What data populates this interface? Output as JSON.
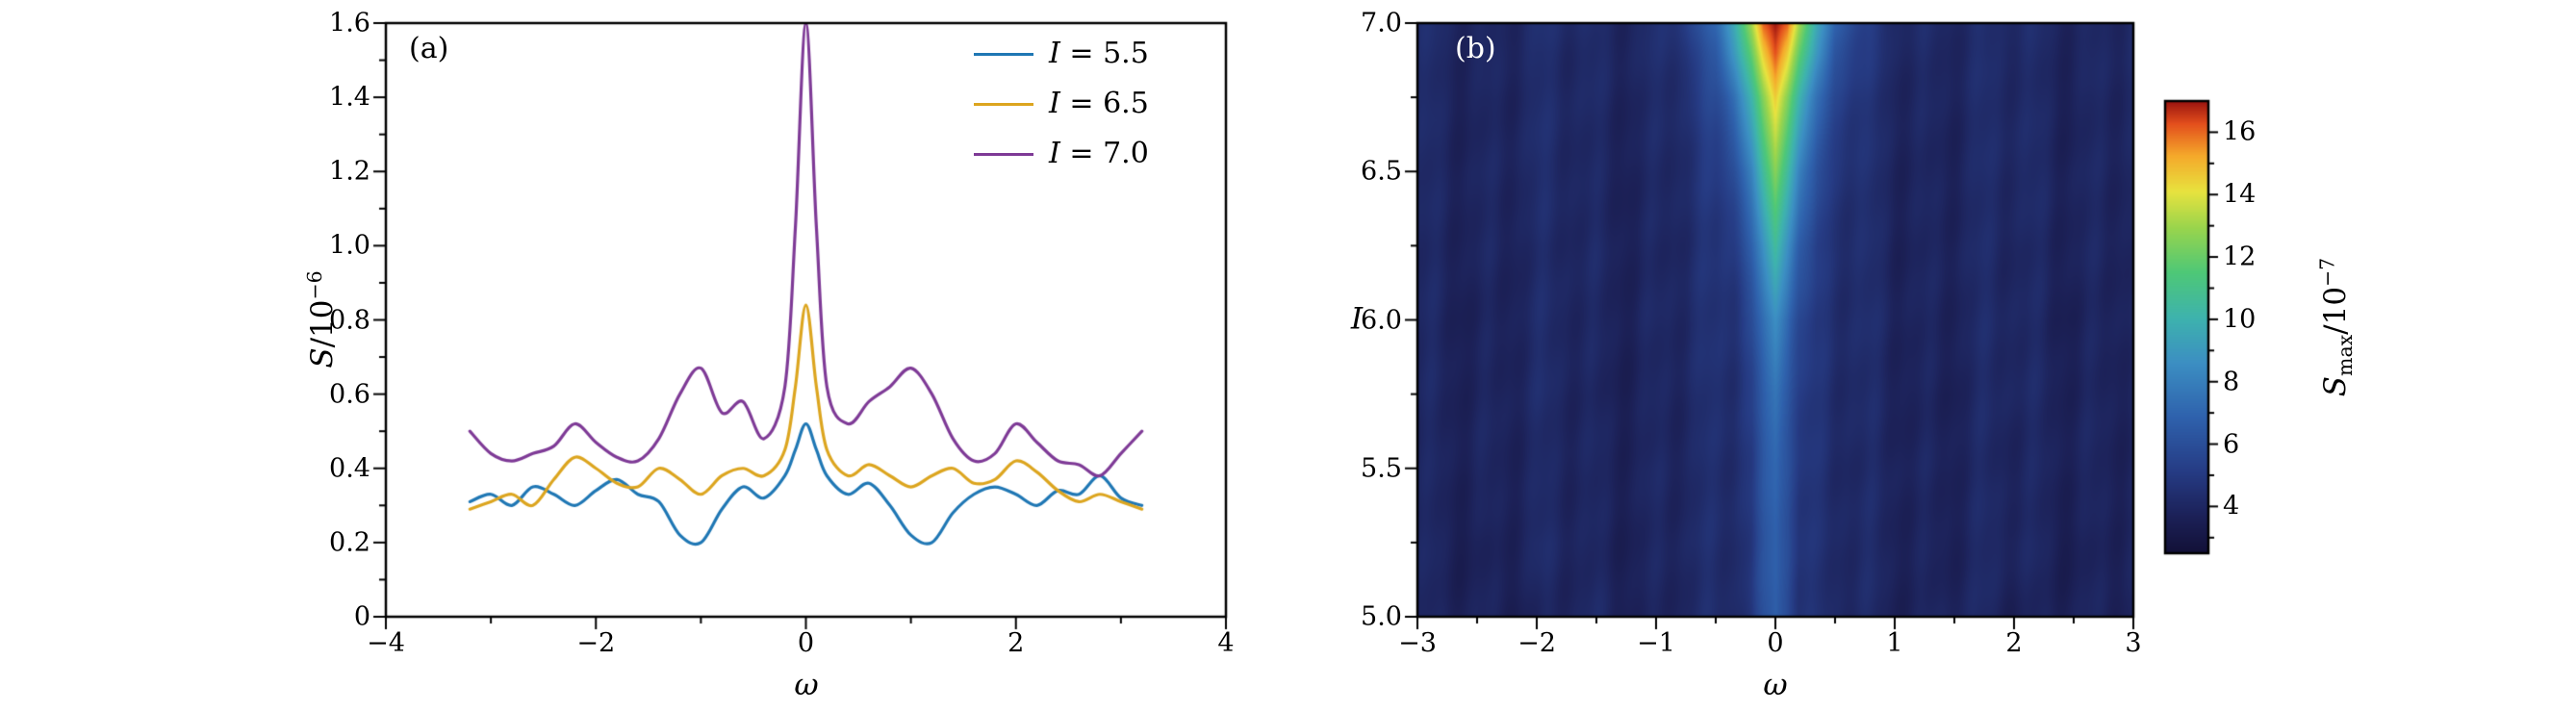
{
  "chart_data": [
    {
      "type": "line",
      "panel_label": "(a)",
      "xlabel": "ω",
      "ylabel": {
        "sym": "S",
        "base": "/10",
        "exp": "−6"
      },
      "xlim": [
        -4,
        4
      ],
      "ylim": [
        0,
        1.6
      ],
      "xtick_values": [
        -4,
        -2,
        0,
        2,
        4
      ],
      "xtick_labels": [
        "−4",
        "−2",
        "0",
        "2",
        "4"
      ],
      "ytick_values": [
        0,
        0.2,
        0.4,
        0.6,
        0.8,
        1.0,
        1.2,
        1.4,
        1.6
      ],
      "ytick_labels": [
        "0",
        "0.2",
        "0.4",
        "0.6",
        "0.8",
        "1.0",
        "1.2",
        "1.4",
        "1.6"
      ],
      "x_minor_step": 1,
      "y_minor_step": 0.1,
      "legend_position": "top-right",
      "x": [
        -3.2,
        -3.0,
        -2.8,
        -2.6,
        -2.4,
        -2.2,
        -2.0,
        -1.8,
        -1.6,
        -1.4,
        -1.2,
        -1.0,
        -0.8,
        -0.6,
        -0.4,
        -0.2,
        -0.1,
        0,
        0.1,
        0.2,
        0.4,
        0.6,
        0.8,
        1.0,
        1.2,
        1.4,
        1.6,
        1.8,
        2.0,
        2.2,
        2.4,
        2.6,
        2.8,
        3.0,
        3.2
      ],
      "series": [
        {
          "name": "I = 5.5",
          "color": "#1f77b4",
          "values": [
            0.31,
            0.33,
            0.3,
            0.35,
            0.33,
            0.3,
            0.34,
            0.37,
            0.33,
            0.31,
            0.22,
            0.2,
            0.29,
            0.35,
            0.32,
            0.38,
            0.45,
            0.52,
            0.45,
            0.38,
            0.33,
            0.36,
            0.3,
            0.22,
            0.2,
            0.28,
            0.33,
            0.35,
            0.33,
            0.3,
            0.34,
            0.33,
            0.38,
            0.32,
            0.3
          ]
        },
        {
          "name": "I = 6.5",
          "color": "#dca51f",
          "values": [
            0.29,
            0.31,
            0.33,
            0.3,
            0.37,
            0.43,
            0.4,
            0.36,
            0.35,
            0.4,
            0.37,
            0.33,
            0.38,
            0.4,
            0.38,
            0.45,
            0.62,
            0.84,
            0.62,
            0.45,
            0.38,
            0.41,
            0.38,
            0.35,
            0.38,
            0.4,
            0.36,
            0.37,
            0.42,
            0.39,
            0.34,
            0.31,
            0.33,
            0.31,
            0.29
          ]
        },
        {
          "name": "I = 7.0",
          "color": "#7e3a96",
          "values": [
            0.5,
            0.44,
            0.42,
            0.44,
            0.46,
            0.52,
            0.47,
            0.43,
            0.42,
            0.48,
            0.6,
            0.67,
            0.55,
            0.58,
            0.48,
            0.62,
            1.05,
            1.6,
            1.05,
            0.62,
            0.52,
            0.58,
            0.62,
            0.67,
            0.6,
            0.48,
            0.42,
            0.44,
            0.52,
            0.47,
            0.42,
            0.41,
            0.38,
            0.44,
            0.5
          ]
        }
      ]
    },
    {
      "type": "heatmap",
      "panel_label": "(b)",
      "xlabel": "ω",
      "ylabel": "I",
      "xlim": [
        -3,
        3
      ],
      "ylim": [
        5.0,
        7.0
      ],
      "xtick_values": [
        -3,
        -2,
        -1,
        0,
        1,
        2,
        3
      ],
      "xtick_labels": [
        "−3",
        "−2",
        "−1",
        "0",
        "1",
        "2",
        "3"
      ],
      "ytick_values": [
        5.0,
        5.5,
        6.0,
        6.5,
        7.0
      ],
      "ytick_labels": [
        "5.0",
        "5.5",
        "6.0",
        "6.5",
        "7.0"
      ],
      "x_minor_step": 0.5,
      "y_minor_step": 0.25,
      "grid_x": [
        -3,
        -2.5,
        -2,
        -1.5,
        -1,
        -0.75,
        -0.5,
        -0.35,
        -0.2,
        -0.1,
        0,
        0.1,
        0.2,
        0.35,
        0.5,
        0.75,
        1,
        1.5,
        2,
        2.5,
        3
      ],
      "grid_y": [
        5.0,
        5.25,
        5.5,
        5.75,
        6.0,
        6.25,
        6.5,
        6.75,
        6.9,
        7.0
      ],
      "values": [
        [
          3.7,
          3.9,
          3.6,
          4.0,
          3.8,
          3.9,
          4.0,
          4.2,
          4.8,
          6.0,
          6.8,
          6.0,
          4.8,
          4.2,
          4.0,
          3.9,
          3.8,
          4.0,
          3.6,
          3.9,
          3.7
        ],
        [
          3.8,
          3.7,
          4.0,
          3.8,
          3.9,
          4.0,
          4.1,
          4.3,
          4.9,
          6.1,
          6.9,
          6.1,
          4.9,
          4.3,
          4.1,
          4.0,
          3.9,
          3.8,
          4.0,
          3.7,
          3.8
        ],
        [
          3.7,
          4.0,
          3.8,
          3.9,
          4.0,
          3.9,
          4.1,
          4.4,
          5.0,
          6.3,
          7.1,
          6.3,
          5.0,
          4.4,
          4.1,
          3.9,
          4.0,
          3.9,
          3.8,
          4.0,
          3.7
        ],
        [
          3.8,
          3.9,
          4.0,
          3.8,
          3.9,
          4.0,
          4.2,
          4.5,
          5.2,
          6.6,
          7.6,
          6.6,
          5.2,
          4.5,
          4.2,
          4.0,
          3.9,
          3.8,
          4.0,
          3.9,
          3.8
        ],
        [
          3.9,
          3.8,
          4.0,
          3.9,
          4.0,
          4.1,
          4.3,
          4.7,
          5.7,
          7.3,
          8.6,
          7.3,
          5.7,
          4.7,
          4.3,
          4.1,
          4.0,
          3.9,
          4.0,
          3.8,
          3.9
        ],
        [
          3.8,
          4.0,
          3.9,
          4.0,
          3.9,
          4.1,
          4.4,
          5.1,
          6.7,
          8.7,
          10.6,
          8.7,
          6.7,
          5.1,
          4.4,
          4.1,
          3.9,
          4.0,
          3.9,
          4.0,
          3.8
        ],
        [
          3.9,
          4.0,
          4.1,
          3.9,
          4.0,
          4.2,
          4.8,
          5.9,
          8.1,
          10.6,
          12.6,
          10.6,
          8.1,
          5.9,
          4.8,
          4.2,
          4.0,
          3.9,
          4.1,
          4.0,
          3.9
        ],
        [
          4.0,
          3.9,
          4.1,
          4.0,
          4.1,
          4.4,
          5.5,
          7.3,
          10.1,
          12.6,
          14.6,
          12.6,
          10.1,
          7.3,
          5.5,
          4.4,
          4.1,
          4.0,
          4.1,
          3.9,
          4.0
        ],
        [
          4.0,
          4.1,
          4.0,
          4.1,
          4.2,
          4.7,
          6.3,
          8.9,
          11.9,
          14.6,
          16.3,
          14.6,
          11.9,
          8.9,
          6.3,
          4.7,
          4.2,
          4.1,
          4.0,
          4.1,
          4.0
        ],
        [
          4.1,
          4.0,
          4.2,
          4.1,
          4.3,
          5.0,
          6.9,
          9.6,
          13.1,
          16.1,
          17.0,
          16.1,
          13.1,
          9.6,
          6.9,
          5.0,
          4.3,
          4.1,
          4.2,
          4.0,
          4.1
        ]
      ],
      "colorbar": {
        "label": {
          "sym": "S",
          "sub": "max",
          "base": "/10",
          "exp": "−7"
        },
        "tick_values": [
          4,
          6,
          8,
          10,
          12,
          14,
          16
        ],
        "tick_labels": [
          "4",
          "6",
          "8",
          "10",
          "12",
          "14",
          "16"
        ],
        "vmin": 2.5,
        "vmax": 17,
        "colormap": [
          [
            0.0,
            "#131138"
          ],
          [
            0.08,
            "#1c2158"
          ],
          [
            0.18,
            "#263c85"
          ],
          [
            0.3,
            "#2f62ad"
          ],
          [
            0.42,
            "#3c8fc3"
          ],
          [
            0.52,
            "#3eb3ae"
          ],
          [
            0.62,
            "#4ec878"
          ],
          [
            0.72,
            "#9ad54d"
          ],
          [
            0.8,
            "#e8e33f"
          ],
          [
            0.88,
            "#f5a92b"
          ],
          [
            0.95,
            "#e4501d"
          ],
          [
            1.0,
            "#9c1510"
          ]
        ]
      }
    }
  ]
}
